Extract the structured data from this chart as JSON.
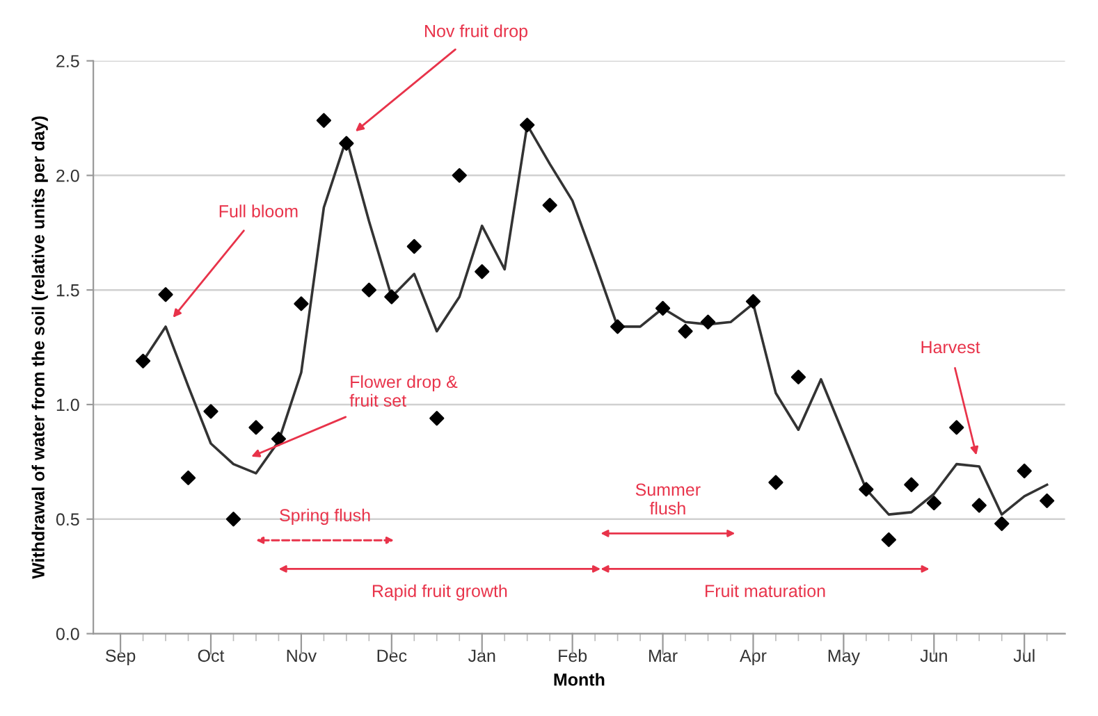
{
  "chart_data": {
    "type": "line",
    "xlabel": "Month",
    "ylabel": "Withdrawal of water from the soil (relative units per day)",
    "categories": [
      "Sep",
      null,
      null,
      null,
      "Oct",
      null,
      null,
      null,
      "Nov",
      null,
      null,
      null,
      "Dec",
      null,
      null,
      null,
      "Jan",
      null,
      null,
      null,
      "Feb",
      null,
      null,
      null,
      "Mar",
      null,
      null,
      null,
      "Apr",
      null,
      null,
      null,
      "May",
      null,
      null,
      null,
      "Jun",
      null,
      null,
      null,
      "Jul",
      null
    ],
    "ylim": [
      0,
      2.5
    ],
    "yticks": [
      {
        "value": 0,
        "label": "0.0"
      },
      {
        "value": 0.5,
        "label": "0.5"
      },
      {
        "value": 1,
        "label": "1.0"
      },
      {
        "value": 1.5,
        "label": "1.5"
      },
      {
        "value": 2,
        "label": "2.0"
      },
      {
        "value": 2.5,
        "label": "2.5"
      }
    ],
    "grid": "y",
    "series": [
      {
        "type": "scatter",
        "color": "#000000",
        "marker": "diamond",
        "values": [
          null,
          1.19,
          1.48,
          0.68,
          0.97,
          0.5,
          0.9,
          0.85,
          1.44,
          2.24,
          2.14,
          1.5,
          1.47,
          1.69,
          0.94,
          2.0,
          1.58,
          null,
          2.22,
          1.87,
          null,
          null,
          1.34,
          null,
          1.42,
          1.32,
          1.36,
          null,
          1.45,
          0.66,
          1.12,
          null,
          null,
          0.63,
          0.41,
          0.65,
          0.57,
          0.9,
          0.56,
          0.48,
          0.71,
          0.58
        ]
      },
      {
        "color": "#333333",
        "line_style": "solid",
        "values": [
          null,
          1.19,
          1.34,
          1.08,
          0.83,
          0.74,
          0.7,
          0.84,
          1.14,
          1.86,
          2.16,
          1.8,
          1.47,
          1.57,
          1.32,
          1.47,
          1.78,
          1.59,
          2.22,
          2.05,
          1.89,
          1.62,
          1.34,
          1.34,
          1.42,
          1.36,
          1.35,
          1.36,
          1.44,
          1.05,
          0.89,
          1.11,
          0.87,
          0.63,
          0.52,
          0.53,
          0.61,
          0.74,
          0.73,
          0.52,
          0.6,
          0.65
        ]
      }
    ],
    "annotations": [
      "Full bloom",
      "Nov fruit drop",
      "Flower drop &\nfruit set",
      "Harvest",
      "Spring flush",
      "Rapid fruit growth",
      "Summer\nflush",
      "Fruit maturation"
    ]
  }
}
